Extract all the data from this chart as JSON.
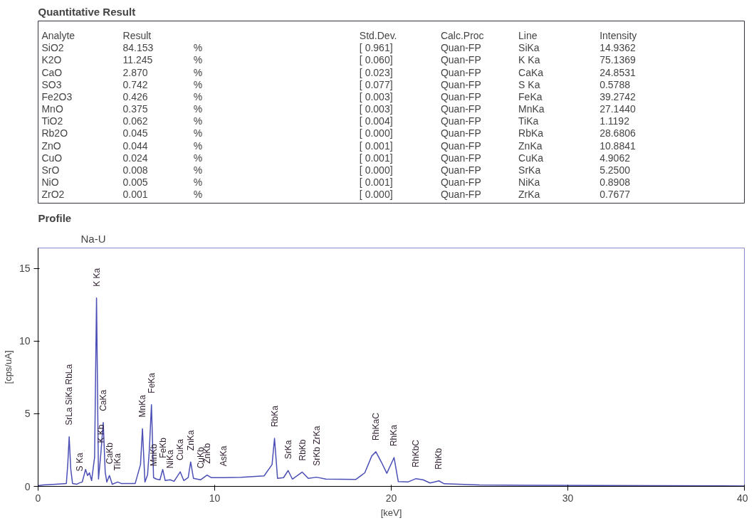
{
  "chart_data": [
    {
      "type": "other",
      "title": "Quantitative Result",
      "categories": [
        "Analyte",
        "Result",
        null,
        "Std.Dev.",
        "Calc.Proc",
        "Line",
        "Intensity"
      ],
      "annotations": [
        "SiO2",
        "84.153",
        "%",
        "[ 0.961]",
        "Quan-FP",
        "SiKa",
        "14.9362",
        "K2O",
        "11.245",
        "%",
        "[ 0.060]",
        "Quan-FP",
        "K Ka",
        "75.1369",
        "CaO",
        "2.870",
        "%",
        "[ 0.023]",
        "Quan-FP",
        "CaKa",
        "24.8531",
        "SO3",
        "0.742",
        "%",
        "[ 0.077]",
        "Quan-FP",
        "S Ka",
        "0.5788",
        "Fe2O3",
        "0.426",
        "%",
        "[ 0.003]",
        "Quan-FP",
        "FeKa",
        "39.2742",
        "MnO",
        "0.375",
        "%",
        "[ 0.003]",
        "Quan-FP",
        "MnKa",
        "27.1440",
        "TiO2",
        "0.062",
        "%",
        "[ 0.004]",
        "Quan-FP",
        "TiKa",
        "1.1192",
        "Rb2O",
        "0.045",
        "%",
        "[ 0.000]",
        "Quan-FP",
        "RbKa",
        "28.6806",
        "ZnO",
        "0.044",
        "%",
        "[ 0.001]",
        "Quan-FP",
        "ZnKa",
        "10.8841",
        "CuO",
        "0.024",
        "%",
        "[ 0.001]",
        "Quan-FP",
        "CuKa",
        "4.9062",
        "SrO",
        "0.008",
        "%",
        "[ 0.000]",
        "Quan-FP",
        "SrKa",
        "5.2500",
        "NiO",
        "0.005",
        "%",
        "[ 0.001]",
        "Quan-FP",
        "NiKa",
        "0.8908",
        "ZrO2",
        "0.001",
        "%",
        "[ 0.000]",
        "Quan-FP",
        "ZrKa",
        "0.7677"
      ]
    },
    {
      "type": "line",
      "title": "Profile",
      "subtitle": "Na-U",
      "ylabel": "[cps/uA]",
      "xlabel": "[keV]",
      "x": [
        0,
        0.3,
        1.0,
        1.6,
        1.68,
        1.76,
        1.85,
        1.95,
        2.2,
        2.36,
        2.5,
        2.69,
        2.8,
        2.91,
        3.03,
        3.2,
        3.31,
        3.42,
        3.55,
        3.69,
        3.8,
        3.89,
        4.04,
        4.2,
        4.51,
        4.7,
        5.5,
        5.8,
        5.91,
        6.05,
        6.2,
        6.3,
        6.42,
        6.54,
        6.7,
        6.9,
        7.06,
        7.2,
        7.48,
        7.7,
        8.05,
        8.25,
        8.5,
        8.64,
        8.8,
        9.2,
        9.57,
        9.8,
        10.5,
        11.5,
        12.8,
        13.25,
        13.39,
        13.56,
        13.9,
        14.16,
        14.4,
        14.96,
        15.3,
        15.77,
        16.3,
        18.0,
        18.5,
        18.9,
        19.13,
        19.45,
        19.75,
        20.16,
        20.4,
        20.94,
        21.4,
        21.8,
        22.2,
        22.7,
        23.0,
        25.0,
        28.0,
        35.0,
        40.0
      ],
      "series": [
        {
          "color": "#4b4fb5",
          "values": [
            0.05,
            0.1,
            0.15,
            0.2,
            1.5,
            3.41,
            1.2,
            0.2,
            0.15,
            0.25,
            0.3,
            1.16,
            0.75,
            0.93,
            0.4,
            2.0,
            12.96,
            0.5,
            2.2,
            4.39,
            1.0,
            0.3,
            0.75,
            0.15,
            0.3,
            0.2,
            0.2,
            1.5,
            3.97,
            0.3,
            0.8,
            2.5,
            5.62,
            0.6,
            0.5,
            0.45,
            1.16,
            0.4,
            0.45,
            0.35,
            1.0,
            0.4,
            0.6,
            1.68,
            0.55,
            0.45,
            0.78,
            0.6,
            0.6,
            0.63,
            0.72,
            1.5,
            3.3,
            0.55,
            0.6,
            1.09,
            0.5,
            0.98,
            0.55,
            0.63,
            0.5,
            0.48,
            0.93,
            2.1,
            2.38,
            1.65,
            0.9,
            1.98,
            0.33,
            0.3,
            0.53,
            0.45,
            0.23,
            0.38,
            0.18,
            0.1,
            0.07,
            0.05,
            0.03
          ]
        }
      ],
      "xlim": [
        0,
        40
      ],
      "ylim": [
        0,
        16.4
      ],
      "xticks": [
        0,
        10,
        20,
        30,
        40
      ],
      "yticks": [
        0,
        5,
        10,
        15
      ],
      "annotations": [
        {
          "text": "SrLa SiKa RbLa",
          "x": 1.76,
          "y": 3.41
        },
        {
          "text": "S Ka",
          "x": 2.36,
          "y": 0.25
        },
        {
          "text": "K Ka",
          "x": 3.31,
          "y": 12.96
        },
        {
          "text": "K Kb",
          "x": 3.55,
          "y": 2.2
        },
        {
          "text": "CaKa",
          "x": 3.69,
          "y": 4.39
        },
        {
          "text": "CaKb",
          "x": 4.04,
          "y": 0.75
        },
        {
          "text": "TiKa",
          "x": 4.51,
          "y": 0.3
        },
        {
          "text": "MnKa",
          "x": 5.91,
          "y": 3.97
        },
        {
          "text": "FeKa",
          "x": 6.42,
          "y": 5.62
        },
        {
          "text": "MnKb",
          "x": 6.54,
          "y": 0.6
        },
        {
          "text": "FeKb",
          "x": 7.06,
          "y": 1.16
        },
        {
          "text": "NiKa",
          "x": 7.48,
          "y": 0.45
        },
        {
          "text": "CuKa",
          "x": 8.05,
          "y": 1.0
        },
        {
          "text": "ZnKa",
          "x": 8.64,
          "y": 1.68
        },
        {
          "text": "CuKb",
          "x": 9.2,
          "y": 0.45
        },
        {
          "text": "ZnKb",
          "x": 9.57,
          "y": 0.78
        },
        {
          "text": "AsKa",
          "x": 10.5,
          "y": 0.6
        },
        {
          "text": "RbKa",
          "x": 13.39,
          "y": 3.3
        },
        {
          "text": "SrKa",
          "x": 14.16,
          "y": 1.09
        },
        {
          "text": "RbKb",
          "x": 14.96,
          "y": 0.98
        },
        {
          "text": "SrKb ZrKa",
          "x": 15.77,
          "y": 0.63
        },
        {
          "text": "RhKaC",
          "x": 19.13,
          "y": 2.38
        },
        {
          "text": "RhKa",
          "x": 20.16,
          "y": 1.98
        },
        {
          "text": "RhKbC",
          "x": 21.4,
          "y": 0.53
        },
        {
          "text": "RhKb",
          "x": 22.7,
          "y": 0.38
        }
      ]
    }
  ]
}
